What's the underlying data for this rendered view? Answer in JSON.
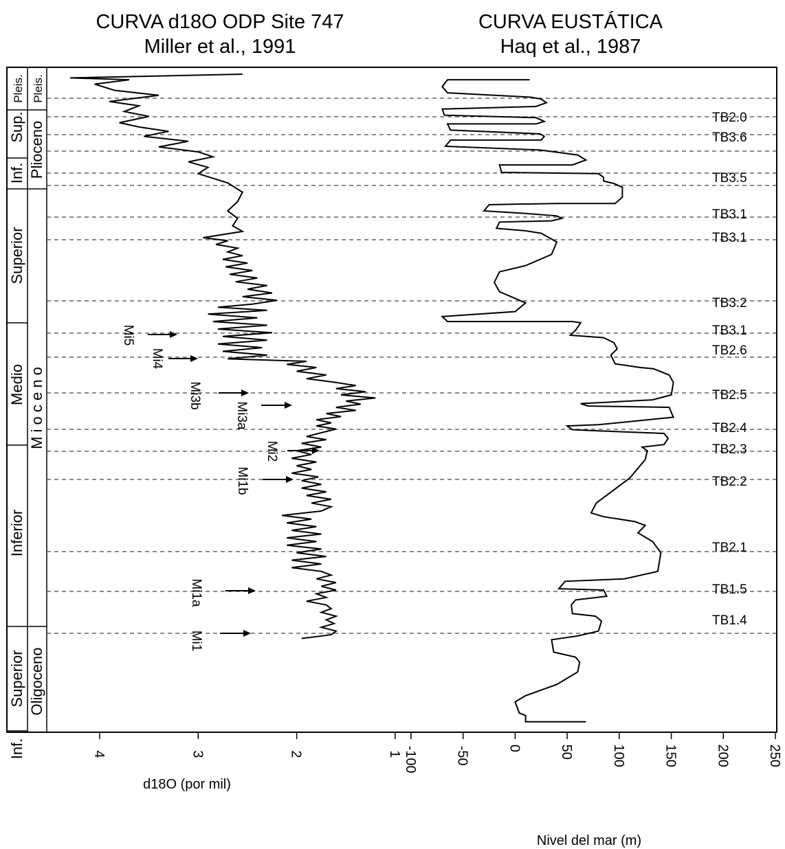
{
  "titles": {
    "left_line1": "CURVA d18O ODP Site 747",
    "left_line2": "Miller et al., 1991",
    "right_line1": "CURVA EUSTÁTICA",
    "right_line2": "Haq et al., 1987"
  },
  "stratigraphy": {
    "subepochs": [
      "Pleis.",
      "Sup.",
      "Inf.",
      "Superior",
      "Medio",
      "Inferior",
      "Superior",
      "Inf."
    ],
    "epochs": [
      "Pleis.",
      "Plioceno",
      "M i o c e n o",
      "Oligoceno"
    ]
  },
  "chart_data": [
    {
      "type": "line",
      "title": "CURVA d18O ODP Site 747",
      "subtitle": "Miller et al., 1991",
      "xlabel": "d18O (por mil)",
      "ylabel": "",
      "x_axis_reversed": true,
      "xlim": [
        4.65,
        1
      ],
      "xticks": [
        4,
        3,
        2,
        1
      ],
      "tick_labels": [
        "4",
        "3",
        "2",
        "1"
      ],
      "series": [
        {
          "points": [
            [
              2.55,
              0
            ],
            [
              4.3,
              6
            ],
            [
              3.7,
              9
            ],
            [
              4.05,
              16
            ],
            [
              3.85,
              26
            ],
            [
              3.4,
              34
            ],
            [
              3.9,
              44
            ],
            [
              3.6,
              51
            ],
            [
              3.75,
              60
            ],
            [
              3.5,
              68
            ],
            [
              3.8,
              78
            ],
            [
              3.6,
              85
            ],
            [
              3.3,
              92
            ],
            [
              3.55,
              100
            ],
            [
              3.1,
              108
            ],
            [
              3.4,
              117
            ],
            [
              3.0,
              125
            ],
            [
              2.85,
              133
            ],
            [
              3.1,
              141
            ],
            [
              2.9,
              150
            ],
            [
              3.0,
              160
            ],
            [
              2.7,
              175
            ],
            [
              2.55,
              190
            ],
            [
              2.6,
              205
            ],
            [
              2.7,
              220
            ],
            [
              2.6,
              232
            ],
            [
              2.65,
              244
            ],
            [
              2.55,
              253
            ],
            [
              2.95,
              263
            ],
            [
              2.7,
              268
            ],
            [
              2.82,
              274
            ],
            [
              2.6,
              280
            ],
            [
              2.7,
              286
            ],
            [
              2.55,
              292
            ],
            [
              2.75,
              298
            ],
            [
              2.5,
              304
            ],
            [
              2.72,
              310
            ],
            [
              2.45,
              316
            ],
            [
              2.68,
              322
            ],
            [
              2.4,
              328
            ],
            [
              2.62,
              334
            ],
            [
              2.3,
              340
            ],
            [
              2.5,
              346
            ],
            [
              2.25,
              352
            ],
            [
              2.55,
              358
            ],
            [
              2.2,
              364
            ],
            [
              2.45,
              370
            ],
            [
              2.8,
              375
            ],
            [
              2.3,
              380
            ],
            [
              2.9,
              386
            ],
            [
              2.4,
              392
            ],
            [
              2.85,
              398
            ],
            [
              2.3,
              404
            ],
            [
              2.8,
              410
            ],
            [
              2.25,
              416
            ],
            [
              2.75,
              422
            ],
            [
              2.3,
              428
            ],
            [
              2.8,
              434
            ],
            [
              2.35,
              440
            ],
            [
              2.75,
              446
            ],
            [
              2.3,
              452
            ],
            [
              2.7,
              458
            ],
            [
              1.9,
              462
            ],
            [
              2.1,
              467
            ],
            [
              1.8,
              472
            ],
            [
              2.0,
              478
            ],
            [
              1.7,
              484
            ],
            [
              1.9,
              490
            ],
            [
              1.6,
              496
            ],
            [
              1.4,
              501
            ],
            [
              1.6,
              506
            ],
            [
              1.3,
              511
            ],
            [
              1.55,
              516
            ],
            [
              1.2,
              521
            ],
            [
              1.5,
              526
            ],
            [
              1.35,
              531
            ],
            [
              1.6,
              536
            ],
            [
              1.4,
              541
            ],
            [
              1.7,
              546
            ],
            [
              1.55,
              551
            ],
            [
              1.8,
              556
            ],
            [
              1.65,
              561
            ],
            [
              1.8,
              566
            ],
            [
              1.6,
              571
            ],
            [
              1.75,
              577
            ],
            [
              1.9,
              583
            ],
            [
              1.7,
              588
            ],
            [
              1.95,
              594
            ],
            [
              1.75,
              600
            ],
            [
              2.0,
              606
            ],
            [
              1.85,
              612
            ],
            [
              2.05,
              618
            ],
            [
              1.8,
              624
            ],
            [
              2.0,
              630
            ],
            [
              1.85,
              636
            ],
            [
              2.05,
              642
            ],
            [
              1.78,
              648
            ],
            [
              1.95,
              654
            ],
            [
              1.75,
              660
            ],
            [
              1.95,
              666
            ],
            [
              1.7,
              672
            ],
            [
              1.9,
              678
            ],
            [
              1.65,
              684
            ],
            [
              1.85,
              690
            ],
            [
              1.65,
              696
            ],
            [
              1.75,
              703
            ],
            [
              2.15,
              710
            ],
            [
              1.85,
              716
            ],
            [
              2.1,
              722
            ],
            [
              1.8,
              728
            ],
            [
              2.05,
              734
            ],
            [
              1.75,
              740
            ],
            [
              2.1,
              746
            ],
            [
              1.8,
              752
            ],
            [
              2.1,
              758
            ],
            [
              1.75,
              764
            ],
            [
              2.0,
              770
            ],
            [
              1.7,
              776
            ],
            [
              2.05,
              782
            ],
            [
              1.75,
              788
            ],
            [
              2.05,
              794
            ],
            [
              1.75,
              800
            ],
            [
              1.65,
              806
            ],
            [
              1.8,
              812
            ],
            [
              1.6,
              818
            ],
            [
              1.75,
              824
            ],
            [
              1.6,
              830
            ],
            [
              1.8,
              836
            ],
            [
              1.7,
              842
            ],
            [
              1.9,
              848
            ],
            [
              1.7,
              854
            ],
            [
              1.65,
              860
            ],
            [
              1.75,
              866
            ],
            [
              1.6,
              872
            ],
            [
              1.7,
              878
            ],
            [
              1.62,
              884
            ],
            [
              1.75,
              890
            ],
            [
              1.6,
              896
            ],
            [
              1.65,
              902
            ],
            [
              1.95,
              908
            ]
          ]
        }
      ],
      "depth_range": [
        0,
        1000
      ]
    },
    {
      "type": "line",
      "title": "CURVA EUSTÁTICA",
      "subtitle": "Haq et al., 1987",
      "xlabel": "Nivel del mar (m)",
      "ylabel": "",
      "xlim": [
        -100,
        250
      ],
      "xticks": [
        -100,
        -50,
        0,
        50,
        100,
        150,
        200,
        250
      ],
      "tick_labels": [
        "-100",
        "-50",
        "0",
        "50",
        "100",
        "150",
        "200",
        "250"
      ],
      "series": [
        {
          "points": [
            [
              14,
              9
            ],
            [
              -65,
              9
            ],
            [
              -70,
              20
            ],
            [
              -65,
              30
            ],
            [
              15,
              37
            ],
            [
              25,
              40
            ],
            [
              30,
              46
            ],
            [
              20,
              52
            ],
            [
              -70,
              56
            ],
            [
              -68,
              66
            ],
            [
              20,
              70
            ],
            [
              28,
              76
            ],
            [
              20,
              80
            ],
            [
              -65,
              80
            ],
            [
              -62,
              90
            ],
            [
              24,
              96
            ],
            [
              28,
              100
            ],
            [
              25,
              106
            ],
            [
              -62,
              106
            ],
            [
              -67,
              116
            ],
            [
              24,
              122
            ],
            [
              60,
              130
            ],
            [
              68,
              138
            ],
            [
              55,
              146
            ],
            [
              -15,
              146
            ],
            [
              -13,
              158
            ],
            [
              80,
              160
            ],
            [
              85,
              166
            ],
            [
              85,
              172
            ],
            [
              95,
              176
            ],
            [
              103,
              182
            ],
            [
              103,
              198
            ],
            [
              96,
              208
            ],
            [
              40,
              208
            ],
            [
              -25,
              210
            ],
            [
              -30,
              220
            ],
            [
              10,
              224
            ],
            [
              40,
              228
            ],
            [
              45,
              232
            ],
            [
              35,
              236
            ],
            [
              -15,
              238
            ],
            [
              -18,
              248
            ],
            [
              10,
              252
            ],
            [
              25,
              256
            ],
            [
              40,
              270
            ],
            [
              35,
              290
            ],
            [
              10,
              308
            ],
            [
              -15,
              318
            ],
            [
              -20,
              335
            ],
            [
              -15,
              350
            ],
            [
              10,
              368
            ],
            [
              0,
              382
            ],
            [
              -70,
              390
            ],
            [
              -65,
              398
            ],
            [
              55,
              398
            ],
            [
              63,
              400
            ],
            [
              58,
              412
            ],
            [
              53,
              420
            ],
            [
              85,
              424
            ],
            [
              95,
              432
            ],
            [
              98,
              442
            ],
            [
              92,
              452
            ],
            [
              96,
              466
            ],
            [
              120,
              472
            ],
            [
              133,
              474
            ],
            [
              148,
              484
            ],
            [
              152,
              496
            ],
            [
              150,
              516
            ],
            [
              132,
              524
            ],
            [
              87,
              528
            ],
            [
              63,
              530
            ],
            [
              70,
              534
            ],
            [
              148,
              536
            ],
            [
              152,
              552
            ],
            [
              80,
              564
            ],
            [
              50,
              566
            ],
            [
              55,
              572
            ],
            [
              80,
              574
            ],
            [
              143,
              578
            ],
            [
              147,
              586
            ],
            [
              143,
              596
            ],
            [
              122,
              600
            ],
            [
              127,
              606
            ],
            [
              125,
              620
            ],
            [
              110,
              650
            ],
            [
              78,
              690
            ],
            [
              73,
              706
            ],
            [
              85,
              712
            ],
            [
              115,
              720
            ],
            [
              125,
              726
            ],
            [
              118,
              738
            ],
            [
              132,
              752
            ],
            [
              140,
              770
            ],
            [
              137,
              800
            ],
            [
              105,
              812
            ],
            [
              48,
              816
            ],
            [
              42,
              828
            ],
            [
              85,
              830
            ],
            [
              88,
              840
            ],
            [
              58,
              846
            ],
            [
              54,
              854
            ],
            [
              55,
              868
            ],
            [
              77,
              872
            ],
            [
              83,
              880
            ],
            [
              80,
              896
            ],
            [
              60,
              904
            ],
            [
              35,
              910
            ],
            [
              37,
              930
            ],
            [
              58,
              938
            ],
            [
              62,
              946
            ],
            [
              60,
              962
            ],
            [
              40,
              982
            ],
            [
              10,
              1000
            ],
            [
              0,
              1010
            ],
            [
              4,
              1028
            ],
            [
              10,
              1032
            ],
            [
              10,
              1042
            ],
            [
              68,
              1042
            ]
          ]
        }
      ],
      "depth_range": [
        0,
        1050
      ]
    }
  ],
  "events": [
    {
      "label": "Mi5"
    },
    {
      "label": "Mi4"
    },
    {
      "label": "Mi3b"
    },
    {
      "label": "Mi3a"
    },
    {
      "label": "Mi2"
    },
    {
      "label": "Mi1b"
    },
    {
      "label": "Mi1a"
    },
    {
      "label": "Mi1"
    }
  ],
  "sequences": [
    "TB2.0",
    "TB3.6",
    "TB3.5",
    "TB3.1",
    "TB3.1",
    "TB3.2",
    "TB3.1",
    "TB2.6",
    "TB2.5",
    "TB2.4",
    "TB2.3",
    "TB2.2",
    "TB2.1",
    "TB1.5",
    "TB1.4"
  ],
  "colors": {
    "line": "#000000",
    "dashed": "#444444",
    "background": "#ffffff"
  }
}
